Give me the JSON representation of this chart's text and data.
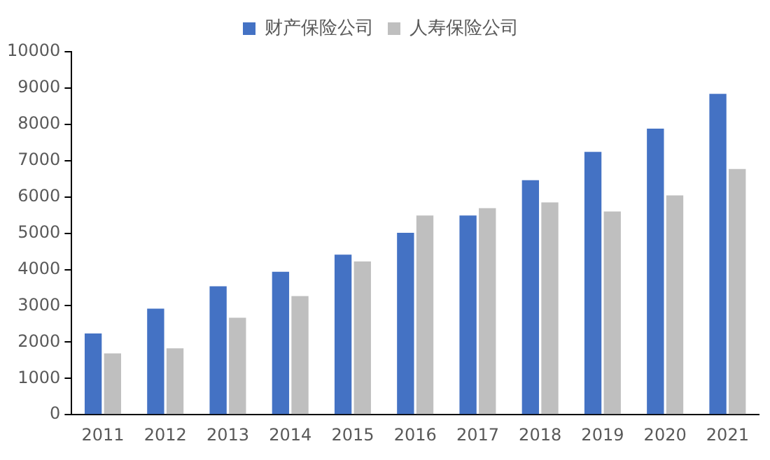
{
  "chart_data": {
    "type": "bar",
    "categories": [
      "2011",
      "2012",
      "2013",
      "2014",
      "2015",
      "2016",
      "2017",
      "2018",
      "2019",
      "2020",
      "2021"
    ],
    "series": [
      {
        "name": "财产保险公司",
        "color": "#4472c4",
        "values": [
          2240,
          2920,
          3540,
          3940,
          4410,
          5010,
          5490,
          6460,
          7240,
          7880,
          8840
        ]
      },
      {
        "name": "人寿保险公司",
        "color": "#bfbfbf",
        "values": [
          1690,
          1830,
          2670,
          3270,
          4220,
          5490,
          5690,
          5850,
          5600,
          6040,
          6770
        ]
      }
    ],
    "ylim": [
      0,
      10000
    ],
    "yticks": [
      0,
      1000,
      2000,
      3000,
      4000,
      5000,
      6000,
      7000,
      8000,
      9000,
      10000
    ],
    "grid": false,
    "legend": "top"
  }
}
